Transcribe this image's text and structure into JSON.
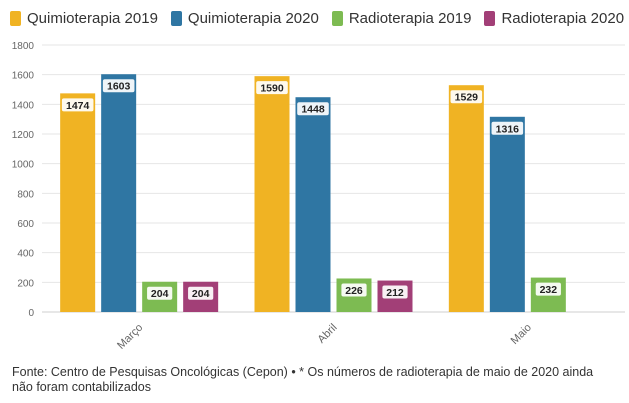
{
  "chart_data": {
    "type": "bar",
    "categories": [
      "Março",
      "Abril",
      "Maio"
    ],
    "series": [
      {
        "name": "Quimioterapia 2019",
        "color": "#F0B323",
        "values": [
          1474,
          1590,
          1529
        ]
      },
      {
        "name": "Quimioterapia 2020",
        "color": "#2F76A3",
        "values": [
          1603,
          1448,
          1316
        ]
      },
      {
        "name": "Radioterapia 2019",
        "color": "#7DBB52",
        "values": [
          204,
          226,
          232
        ]
      },
      {
        "name": "Radioterapia 2020",
        "color": "#A23F77",
        "values": [
          204,
          212,
          null
        ]
      }
    ],
    "yticks": [
      0,
      200,
      400,
      600,
      800,
      1000,
      1200,
      1400,
      1600,
      1800
    ],
    "ylim": [
      0,
      1800
    ],
    "grid": true,
    "legend_position": "top-left",
    "data_labels": true
  },
  "footer": {
    "source": "Fonte: Centro de Pesquisas Oncológicas (Cepon) • * Os números de radioterapia de maio de 2020 ainda não foram contabilizados"
  }
}
